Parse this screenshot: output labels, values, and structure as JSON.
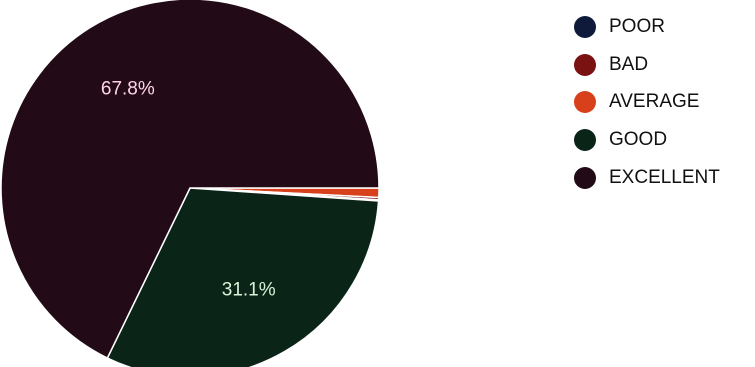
{
  "chart_data": {
    "type": "pie",
    "categories": [
      "POOR",
      "BAD",
      "AVERAGE",
      "GOOD",
      "EXCELLENT"
    ],
    "values": [
      0.1,
      0.2,
      0.8,
      31.1,
      67.8
    ],
    "slice_labels": [
      "",
      "",
      "",
      "31.1%",
      "67.8%"
    ],
    "colors": [
      "#0f1a3a",
      "#7a1212",
      "#d8401c",
      "#0b2418",
      "#220a16"
    ],
    "label_colors": [
      "#ffffff",
      "#ffffff",
      "#ffffff",
      "#d9f2d9",
      "#ffd3ea"
    ],
    "legend_position": "right",
    "start_angle_deg": 0,
    "direction": "clockwise"
  }
}
